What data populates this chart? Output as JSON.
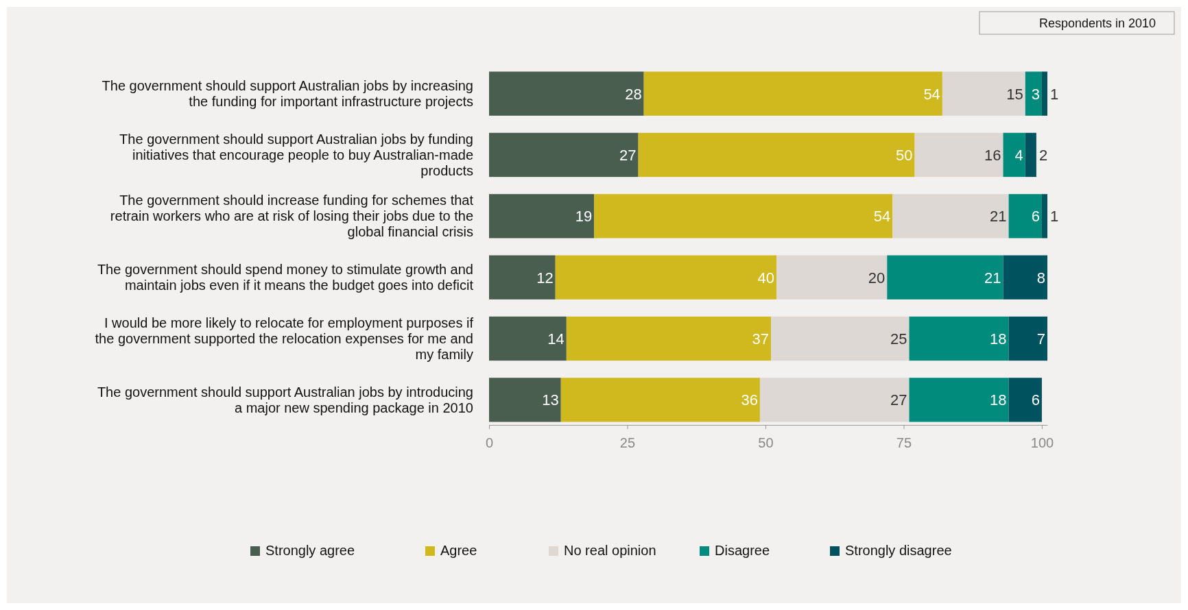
{
  "chart_data": {
    "type": "bar",
    "orientation": "horizontal",
    "stacked": true,
    "title": "Respondents in 2010",
    "categories": [
      "The government should support Australian jobs by increasing the funding for important infrastructure projects",
      "The government should support Australian jobs by funding initiatives that encourage people to buy Australian-made products",
      "The government should increase funding for schemes that retrain workers who are at risk of losing their jobs due to the global financial crisis",
      "The government should spend money to stimulate growth and maintain jobs even if it means the budget goes into deficit",
      "I would be more likely to relocate for employment purposes if the government supported the relocation expenses for me and my family",
      "The government should support Australian jobs by introducing a major new spending package in 2010"
    ],
    "series": [
      {
        "name": "Strongly agree",
        "color": "#4a5e50",
        "values": [
          28,
          27,
          19,
          12,
          14,
          13
        ]
      },
      {
        "name": "Agree",
        "color": "#cfb91f",
        "values": [
          54,
          50,
          54,
          40,
          37,
          36
        ]
      },
      {
        "name": "No real opinion",
        "color": "#ddd8d3",
        "values": [
          15,
          16,
          21,
          20,
          25,
          27
        ]
      },
      {
        "name": "Disagree",
        "color": "#008b7c",
        "values": [
          3,
          4,
          6,
          21,
          18,
          18
        ]
      },
      {
        "name": "Strongly disagree",
        "color": "#00535e",
        "values": [
          1,
          2,
          1,
          8,
          7,
          6
        ]
      }
    ],
    "xlim": [
      0,
      101
    ],
    "xticks": [
      0,
      25,
      50,
      75,
      100
    ],
    "data_labels": true,
    "legend": "bottom"
  }
}
